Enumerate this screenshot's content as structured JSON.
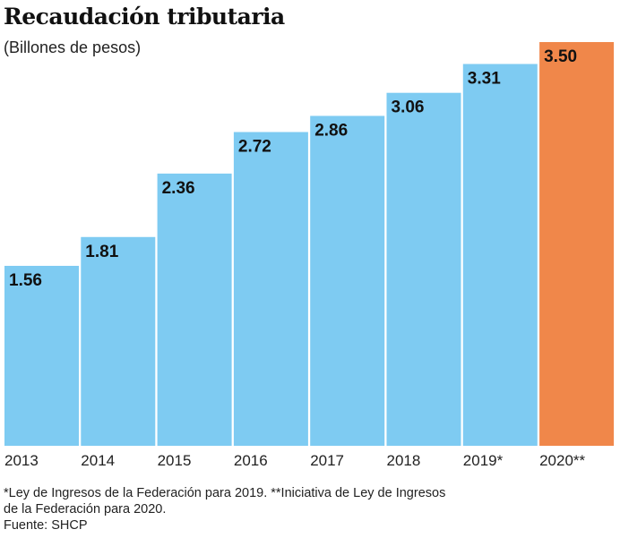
{
  "chart_data": {
    "type": "bar",
    "title": "Recaudación tributaria",
    "subtitle": "(Billones de pesos)",
    "categories": [
      "2013",
      "2014",
      "2015",
      "2016",
      "2017",
      "2018",
      "2019*",
      "2020**"
    ],
    "values": [
      1.56,
      1.81,
      2.36,
      2.72,
      2.86,
      3.06,
      3.31,
      3.5
    ],
    "value_labels": [
      "1.56",
      "1.81",
      "2.36",
      "2.72",
      "2.86",
      "3.06",
      "3.31",
      "3.50"
    ],
    "ylim": [
      0,
      3.5
    ],
    "grid": false,
    "colors": {
      "default": "#7ecbf2",
      "highlight": "#f0874a"
    },
    "highlight_index": 7
  },
  "footnotes": {
    "line1": "*Ley de Ingresos de la Federación para 2019. **Iniciativa de Ley de Ingresos",
    "line2": "de la Federación para 2020.",
    "source": "Fuente: SHCP"
  }
}
